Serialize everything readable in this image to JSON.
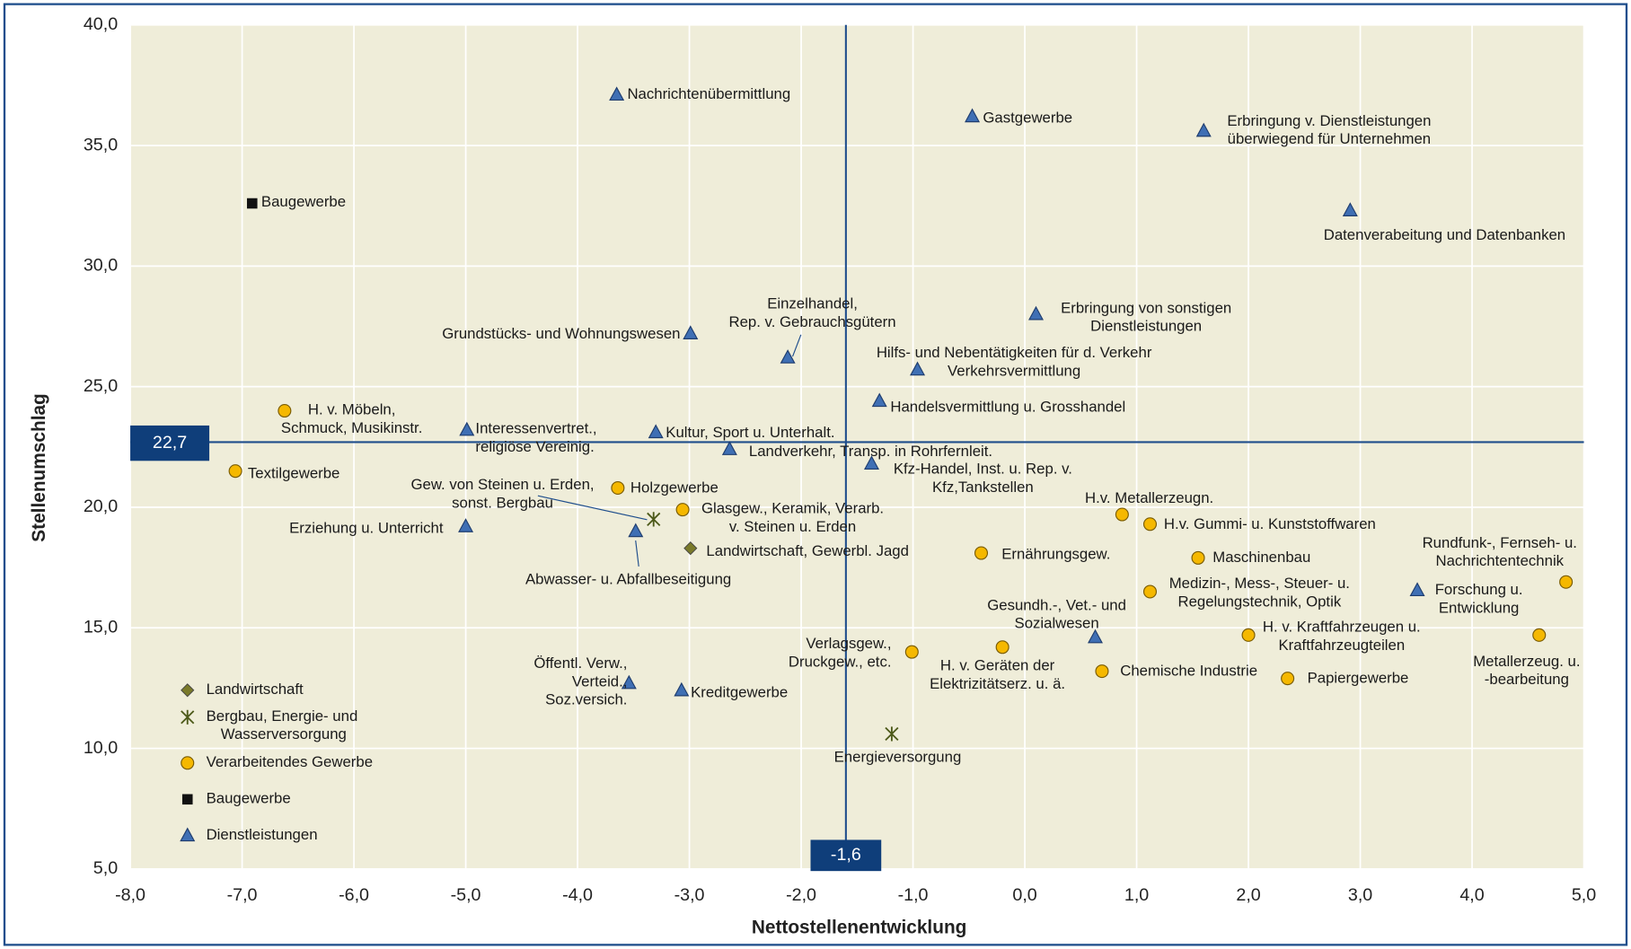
{
  "chart_data": {
    "type": "scatter",
    "x_label": "Nettostellenentwicklung",
    "y_label": "Stellenumschlag",
    "xlim": [
      -8,
      5
    ],
    "ylim": [
      5,
      40
    ],
    "xticks": [
      {
        "value": -8,
        "label": "-8,0"
      },
      {
        "value": -7,
        "label": "-7,0"
      },
      {
        "value": -6,
        "label": "-6,0"
      },
      {
        "value": -5,
        "label": "-5,0"
      },
      {
        "value": -4,
        "label": "-4,0"
      },
      {
        "value": -3,
        "label": "-3,0"
      },
      {
        "value": -2,
        "label": "-2,0"
      },
      {
        "value": -1,
        "label": "-1,0"
      },
      {
        "value": 0,
        "label": "0,0"
      },
      {
        "value": 1,
        "label": "1,0"
      },
      {
        "value": 2,
        "label": "2,0"
      },
      {
        "value": 3,
        "label": "3,0"
      },
      {
        "value": 4,
        "label": "4,0"
      },
      {
        "value": 5,
        "label": "5,0"
      }
    ],
    "yticks": [
      {
        "value": 5,
        "label": "5,0"
      },
      {
        "value": 10,
        "label": "10,0"
      },
      {
        "value": 15,
        "label": "15,0"
      },
      {
        "value": 20,
        "label": "20,0"
      },
      {
        "value": 25,
        "label": "25,0"
      },
      {
        "value": 30,
        "label": "30,0"
      },
      {
        "value": 35,
        "label": "35,0"
      },
      {
        "value": 40,
        "label": "40,0"
      }
    ],
    "grid": true,
    "legend": "lower left",
    "reference_lines": {
      "x": {
        "value": -1.6,
        "label": "-1,6"
      },
      "y": {
        "value": 22.7,
        "label": "22,7"
      }
    },
    "series": [
      {
        "name": "Landwirtschaft",
        "marker": "diamond",
        "color": "#7a7a2a",
        "x": [
          -2.99
        ],
        "values": [
          18.3
        ],
        "labels": [
          [
            "Landwirtschaft, Gewerbl. Jagd"
          ]
        ]
      },
      {
        "name": "Bergbau, Energie- und Wasserversorgung",
        "marker": "asterisk",
        "color": "#4d5a1a",
        "x": [
          -3.32,
          -1.19
        ],
        "values": [
          19.5,
          10.6
        ],
        "labels": [
          [
            "Gew. von Steinen u. Erden,",
            "sonst. Bergbau"
          ],
          [
            "Energieversorgung"
          ]
        ]
      },
      {
        "name": "Verarbeitendes Gewerbe",
        "marker": "circle",
        "color": "#f5b800",
        "x": [
          -6.62,
          -7.06,
          -3.64,
          -3.06,
          0.87,
          1.12,
          -0.39,
          1.55,
          1.12,
          4.84,
          4.6,
          2.0,
          -1.01,
          -0.2,
          0.69,
          2.35
        ],
        "values": [
          24.0,
          21.5,
          20.8,
          19.9,
          19.7,
          19.3,
          18.1,
          17.9,
          16.5,
          16.9,
          14.7,
          14.7,
          14.0,
          14.2,
          13.2,
          12.9
        ],
        "labels": [
          [
            "H. v. Möbeln,",
            "Schmuck, Musikinstr."
          ],
          [
            "Textilgewerbe"
          ],
          [
            "Holzgewerbe"
          ],
          [
            "Glasgew., Keramik, Verarb.",
            "v. Steinen u. Erden"
          ],
          [
            "H.v. Metallerzeugn."
          ],
          [
            "H.v. Gummi- u. Kunststoffwaren"
          ],
          [
            "Ernährungsgew."
          ],
          [
            "Maschinenbau"
          ],
          [
            "Medizin-, Mess-, Steuer- u.",
            "Regelungstechnik, Optik"
          ],
          [
            "Rundfunk-, Fernseh- u.",
            "Nachrichtentechnik"
          ],
          [
            "Metallerzeug. u.",
            "-bearbeitung"
          ],
          [
            "H. v. Kraftfahrzeugen u.",
            "Kraftfahrzeugteilen"
          ],
          [
            "Verlagsgew.,",
            "Druckgew., etc."
          ],
          [
            "H. v. Geräten der",
            "Elektrizitätserz. u. ä."
          ],
          [
            "Chemische Industrie"
          ],
          [
            "Papiergewerbe"
          ]
        ]
      },
      {
        "name": "Baugewerbe",
        "marker": "square",
        "color": "#111111",
        "x": [
          -6.91
        ],
        "values": [
          32.6
        ],
        "labels": [
          [
            "Baugewerbe"
          ]
        ]
      },
      {
        "name": "Dienstleistungen",
        "marker": "triangle",
        "color": "#3f6fb4",
        "x": [
          -3.65,
          -0.47,
          1.6,
          2.91,
          -2.99,
          -2.12,
          0.1,
          -0.96,
          -1.3,
          -4.99,
          -3.3,
          -2.64,
          -1.37,
          -5.0,
          -3.48,
          0.63,
          3.51,
          -3.54,
          -3.07
        ],
        "values": [
          37.1,
          36.2,
          35.6,
          32.3,
          27.2,
          26.2,
          28.0,
          25.7,
          24.4,
          23.2,
          23.1,
          22.4,
          21.8,
          19.2,
          19.0,
          14.6,
          16.55,
          12.7,
          12.4
        ],
        "labels": [
          [
            "Nachrichtenübermittlung"
          ],
          [
            "Gastgewerbe"
          ],
          [
            "Erbringung v. Dienstleistungen",
            "überwiegend für Unternehmen"
          ],
          [
            "Datenverabeitung und Datenbanken"
          ],
          [
            "Grundstücks- und Wohnungswesen"
          ],
          [
            "Einzelhandel,",
            "Rep. v. Gebrauchsgütern"
          ],
          [
            "Erbringung von sonstigen",
            "Dienstleistungen"
          ],
          [
            "Hilfs- und Nebentätigkeiten für d. Verkehr",
            "Verkehrsvermittlung"
          ],
          [
            "Handelsvermittlung u. Grosshandel"
          ],
          [
            "Interessenvertret.,",
            "religiöse Vereinig."
          ],
          [
            "Kultur, Sport u. Unterhalt."
          ],
          [
            "Landverkehr, Transp. in Rohrfernleit."
          ],
          [
            "Kfz-Handel, Inst. u. Rep. v.",
            "Kfz,Tankstellen"
          ],
          [
            "Erziehung  u. Unterricht"
          ],
          [
            "Abwasser- u. Abfallbeseitigung"
          ],
          [
            "Gesundh.-, Vet.- und",
            "Sozialwesen"
          ],
          [
            "Forschung u.",
            "Entwicklung"
          ],
          [
            "Öffentl. Verw.,",
            "Verteid.,",
            "Soz.versich."
          ],
          [
            "Kreditgewerbe"
          ]
        ]
      }
    ]
  }
}
